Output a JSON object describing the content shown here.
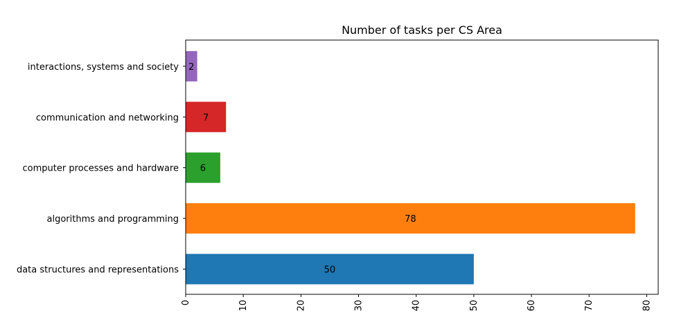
{
  "chart_data": {
    "type": "bar",
    "orientation": "horizontal",
    "title": "Number of tasks per CS Area",
    "xlabel": "",
    "ylabel": "",
    "categories": [
      "data structures and representations",
      "algorithms and programming",
      "computer processes and hardware",
      "communication and networking",
      "interactions, systems and society"
    ],
    "values": [
      50,
      78,
      6,
      7,
      2
    ],
    "colors": [
      "#1f77b4",
      "#ff7f0e",
      "#2ca02c",
      "#d62728",
      "#9467bd"
    ],
    "xlim": [
      0,
      82
    ],
    "xticks": [
      0,
      10,
      20,
      30,
      40,
      50,
      60,
      70,
      80
    ],
    "grid": false,
    "legend": "none"
  }
}
